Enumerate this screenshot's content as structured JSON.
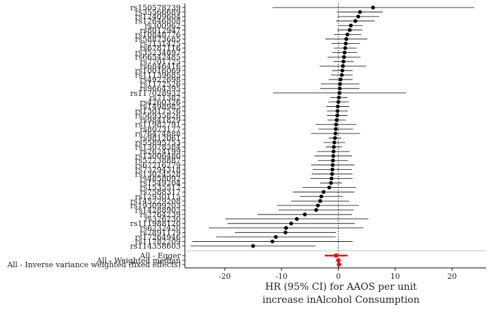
{
  "chart_data": {
    "type": "forest",
    "xlabel_lines": [
      "HR (95% CI) for AAOS per unit",
      "increase inAlcohol Consumption"
    ],
    "xlim": [
      -27,
      26
    ],
    "x_ticks": [
      -20,
      -10,
      0,
      10,
      20
    ],
    "reference_line_x": 0,
    "grid": false,
    "colors": {
      "snp": "#000000",
      "summary": "#ff0000",
      "ci": "#000000"
    },
    "snps": [
      {
        "name": "rs150578239",
        "hr": 6.1,
        "lo": -11.6,
        "hi": 23.9
      },
      {
        "name": "rs35566689",
        "hr": 3.8,
        "lo": -0.3,
        "hi": 7.8
      },
      {
        "name": "rs12409604",
        "hr": 3.5,
        "lo": -0.2,
        "hi": 7.2
      },
      {
        "name": "rs12646808",
        "hr": 3.0,
        "lo": -0.4,
        "hi": 6.4
      },
      {
        "name": "rs300962",
        "hr": 2.2,
        "lo": 0.1,
        "hi": 4.3
      },
      {
        "name": "rs8012947",
        "hr": 2.0,
        "lo": -0.2,
        "hi": 4.2
      },
      {
        "name": "rs10848776",
        "hr": 1.6,
        "lo": -0.8,
        "hi": 4.0
      },
      {
        "name": "rs58873685",
        "hr": 1.4,
        "lo": -2.3,
        "hi": 5.1
      },
      {
        "name": "rs2131425",
        "hr": 1.3,
        "lo": -1.2,
        "hi": 3.8
      },
      {
        "name": "rs6787116",
        "hr": 1.2,
        "lo": -0.8,
        "hi": 3.2
      },
      {
        "name": "rs35234897",
        "hr": 1.1,
        "lo": -1.1,
        "hi": 3.3
      },
      {
        "name": "rs66542485",
        "hr": 1.0,
        "lo": -1.9,
        "hi": 3.9
      },
      {
        "name": "rs7701725",
        "hr": 0.9,
        "lo": -0.9,
        "hi": 2.7
      },
      {
        "name": "rs6846416",
        "hr": 0.8,
        "lo": -3.3,
        "hi": 4.9
      },
      {
        "name": "rs10016069",
        "hr": 0.7,
        "lo": -1.1,
        "hi": 2.5
      },
      {
        "name": "rs11139685",
        "hr": 0.6,
        "lo": -1.3,
        "hi": 2.5
      },
      {
        "name": "rs4922698",
        "hr": 0.4,
        "lo": -1.7,
        "hi": 2.5
      },
      {
        "name": "rs1172526",
        "hr": 0.3,
        "lo": -3.1,
        "hi": 3.7
      },
      {
        "name": "rs9664395",
        "hr": 0.25,
        "lo": -3.2,
        "hi": 3.7
      },
      {
        "name": "rs117028932",
        "hr": 0.2,
        "lo": -11.5,
        "hi": 11.9
      },
      {
        "name": "rs71382",
        "hr": 0.1,
        "lo": -1.4,
        "hi": 1.6
      },
      {
        "name": "rs4260326",
        "hr": 0.0,
        "lo": -1.8,
        "hi": 1.8
      },
      {
        "name": "rs1498985",
        "hr": -0.1,
        "lo": -2.1,
        "hi": 1.9
      },
      {
        "name": "rs13017576",
        "hr": -0.15,
        "lo": -2.0,
        "hi": 1.7
      },
      {
        "name": "rs56935826",
        "hr": -0.2,
        "lo": -2.0,
        "hi": 1.6
      },
      {
        "name": "rs9841829",
        "hr": -0.3,
        "lo": -1.9,
        "hi": 1.3
      },
      {
        "name": "rs11982791",
        "hr": -0.4,
        "lo": -4.0,
        "hi": 3.2
      },
      {
        "name": "rs8073177",
        "hr": -0.45,
        "lo": -3.5,
        "hi": 2.6
      },
      {
        "name": "rs76474888",
        "hr": -0.5,
        "lo": -4.8,
        "hi": 3.8
      },
      {
        "name": "rs9812061",
        "hr": -0.6,
        "lo": -1.7,
        "hi": 0.5
      },
      {
        "name": "rs55895753",
        "hr": -0.7,
        "lo": -2.6,
        "hi": 1.2
      },
      {
        "name": "rs13078384",
        "hr": -0.8,
        "lo": -2.2,
        "hi": 0.6
      },
      {
        "name": "rs2624199",
        "hr": -0.85,
        "lo": -3.7,
        "hi": 2.0
      },
      {
        "name": "rs13006480",
        "hr": -0.9,
        "lo": -4.2,
        "hi": 2.4
      },
      {
        "name": "rs57238887",
        "hr": -0.95,
        "lo": -3.6,
        "hi": 1.7
      },
      {
        "name": "rs67216279",
        "hr": -1.0,
        "lo": -4.8,
        "hi": 2.8
      },
      {
        "name": "rs73294318",
        "hr": -1.05,
        "lo": -4.5,
        "hi": 2.4
      },
      {
        "name": "rs13024528",
        "hr": -1.1,
        "lo": -4.7,
        "hi": 2.5
      },
      {
        "name": "rs4858092",
        "hr": -1.2,
        "lo": -4.9,
        "hi": 2.5
      },
      {
        "name": "rs1549204",
        "hr": -1.3,
        "lo": -3.2,
        "hi": 0.6
      },
      {
        "name": "rs1535517",
        "hr": -1.6,
        "lo": -6.3,
        "hi": 3.1
      },
      {
        "name": "rs7588317",
        "hr": -2.6,
        "lo": -8.0,
        "hi": 2.8
      },
      {
        "name": "rs12930115",
        "hr": -3.0,
        "lo": -6.8,
        "hi": 0.8
      },
      {
        "name": "rs145229208",
        "hr": -3.2,
        "lo": -8.3,
        "hi": 1.9
      },
      {
        "name": "rs193099203",
        "hr": -3.6,
        "lo": -10.8,
        "hi": 3.6
      },
      {
        "name": "rs14288903",
        "hr": -3.9,
        "lo": -10.5,
        "hi": 2.7
      },
      {
        "name": "rs2764239",
        "hr": -5.9,
        "lo": -14.2,
        "hi": 2.4
      },
      {
        "name": "rs326230",
        "hr": -7.3,
        "lo": -19.9,
        "hi": 5.3
      },
      {
        "name": "rs111988120",
        "hr": -8.3,
        "lo": -19.5,
        "hi": 2.9
      },
      {
        "name": "rs6232420",
        "hr": -9.2,
        "lo": -22.8,
        "hi": 4.4
      },
      {
        "name": "rs7891179",
        "hr": -9.3,
        "lo": -18.2,
        "hi": -0.4
      },
      {
        "name": "rs17264946",
        "hr": -11.0,
        "lo": -21.5,
        "hi": -0.5
      },
      {
        "name": "rs11782209",
        "hr": -11.6,
        "lo": -25.7,
        "hi": 2.5
      },
      {
        "name": "rs114358603",
        "hr": -15.0,
        "lo": -26.0,
        "hi": -4.0
      }
    ],
    "summary": [
      {
        "name": "All - Egger",
        "hr": -0.4,
        "lo": -2.4,
        "hi": 1.6
      },
      {
        "name": "All - Weighted median",
        "hr": 0.0,
        "lo": -0.3,
        "hi": 0.3
      },
      {
        "name": "All - Inverse variance weighted (fixed effects)",
        "hr": 0.1,
        "lo": -0.2,
        "hi": 0.4
      }
    ]
  }
}
